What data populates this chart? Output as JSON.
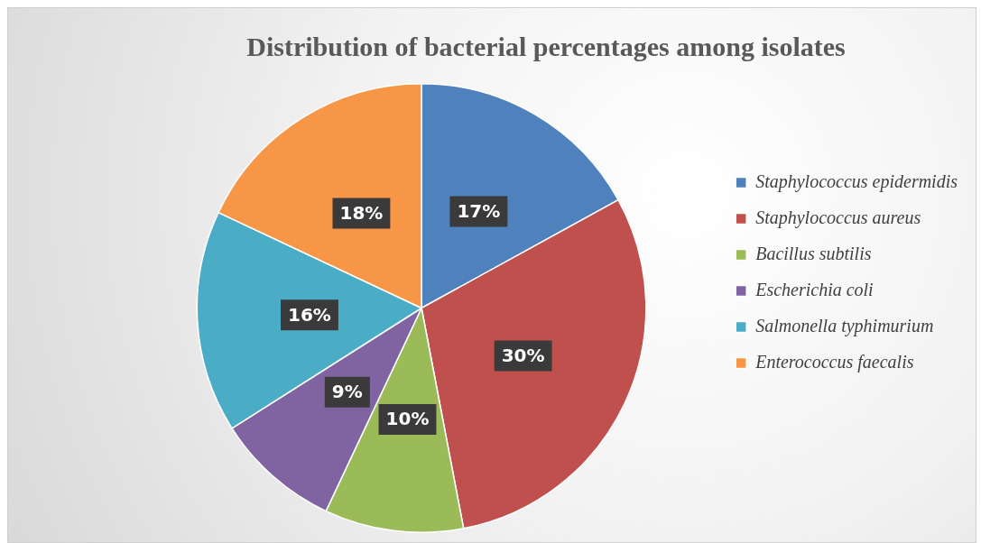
{
  "chart_data": {
    "type": "pie",
    "title": "Distribution of bacterial percentages among isolates",
    "categories": [
      "Staphylococcus epidermidis",
      "Staphylococcus aureus",
      "Bacillus subtilis",
      "Escherichia coli",
      "Salmonella typhimurium",
      "Enterococcus faecalis"
    ],
    "values": [
      17,
      30,
      10,
      9,
      16,
      18
    ],
    "colors": [
      "#4f81bd",
      "#c0504d",
      "#9bbb59",
      "#8064a2",
      "#4bacc6",
      "#f79646"
    ],
    "value_labels": [
      "17%",
      "30%",
      "10%",
      "9%",
      "16%",
      "18%"
    ],
    "legend": "right"
  }
}
